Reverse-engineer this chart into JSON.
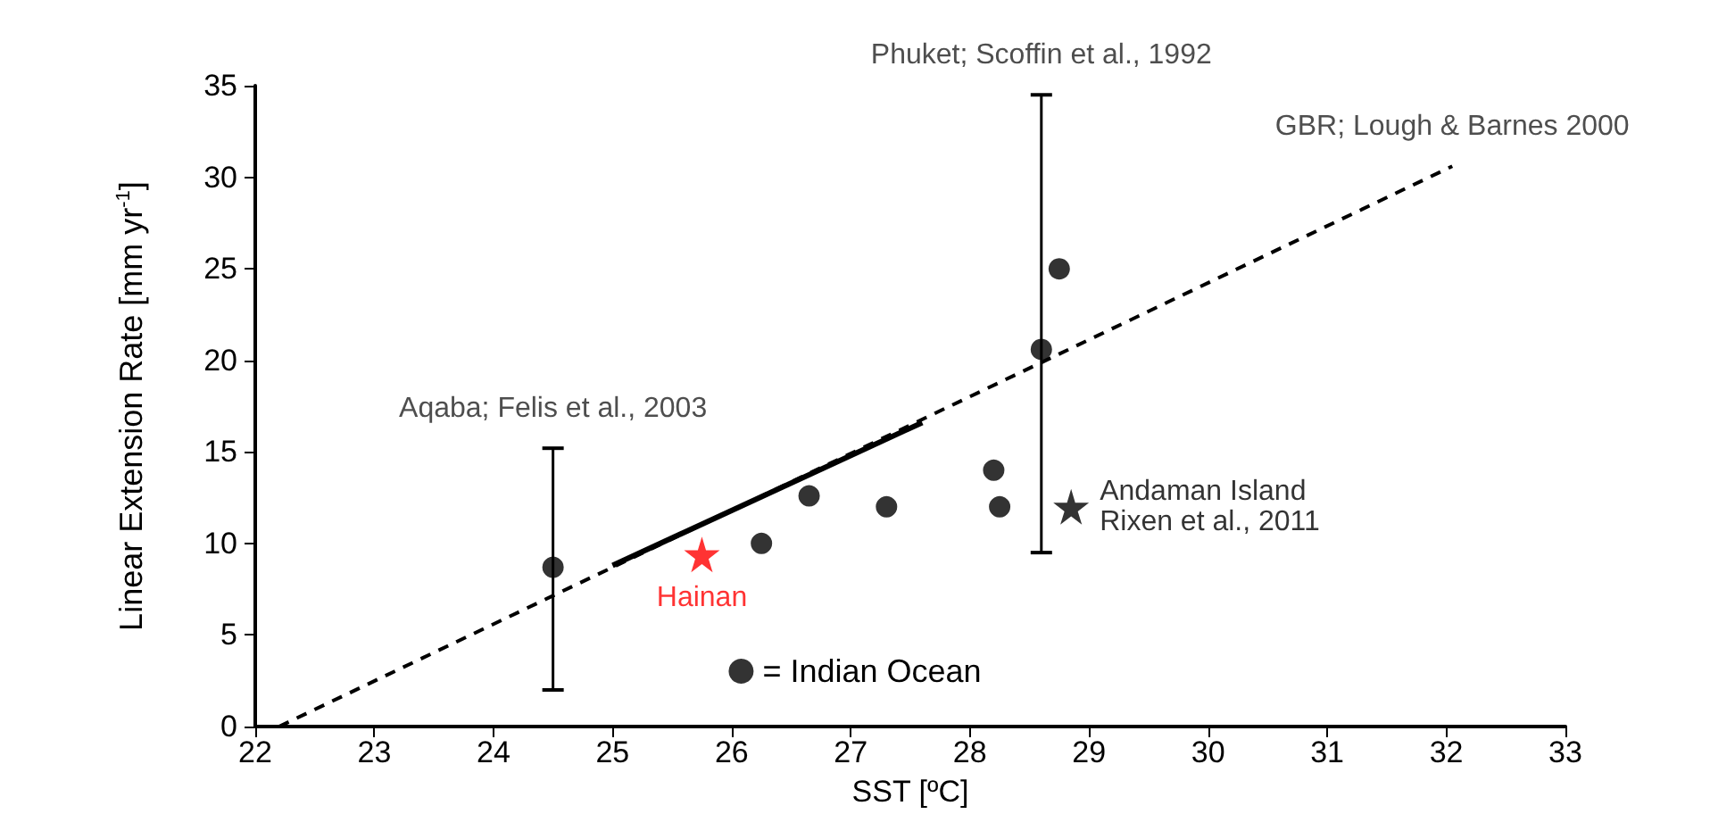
{
  "chart_data": {
    "type": "scatter",
    "xlabel": "SST [ºC]",
    "ylabel": "Linear Extension Rate [mm yr$^{-1}$]",
    "xlim": [
      22,
      33
    ],
    "xticks": [
      22,
      23,
      24,
      25,
      26,
      27,
      28,
      29,
      30,
      31,
      32,
      33
    ],
    "ylim": [
      0,
      35
    ],
    "yticks": [
      0,
      5,
      10,
      15,
      20,
      25,
      30,
      35
    ],
    "grid": false,
    "legend": "bottom",
    "series": [
      {
        "name": "= Indian Ocean",
        "marker": "circle",
        "color": "#000000",
        "x": [
          24.5,
          26.25,
          26.65,
          27.3,
          28.2,
          28.25,
          28.6,
          28.75
        ],
        "values": [
          8.7,
          10,
          12.6,
          12,
          14,
          12,
          20.6,
          25
        ],
        "errors": [
          [
            2,
            15.2
          ],
          null,
          null,
          null,
          null,
          null,
          [
            9.5,
            34.5
          ],
          null
        ]
      },
      {
        "name": "Hainan",
        "marker": "star",
        "color": "#ff0000",
        "x": [
          25.75
        ],
        "values": [
          9.4
        ]
      },
      {
        "name": "Andaman Island\nRixen et al., 2011",
        "marker": "star",
        "color": "#000000",
        "x": [
          28.85
        ],
        "values": [
          12
        ]
      },
      {
        "type": "line",
        "marker": "none",
        "line_style": "dashed",
        "color": "#000000",
        "x": [
          22.2,
          32.05
        ],
        "values": [
          0,
          30.6
        ]
      },
      {
        "type": "line",
        "marker": "none",
        "line_style": "solid",
        "color": "#000000",
        "x": [
          25,
          27.6
        ],
        "values": [
          8.8,
          16.6
        ]
      }
    ],
    "annotations": [
      {
        "text": "Aqaba; Felis et al., 2003",
        "x": 24.5,
        "y": 15.2
      },
      {
        "text": "Phuket; Scoffin et al., 1992",
        "x": 28.6,
        "y": 34.5
      },
      {
        "text": "GBR; Lough & Barnes 2000",
        "x": 32.05,
        "y": 30.6
      }
    ]
  }
}
